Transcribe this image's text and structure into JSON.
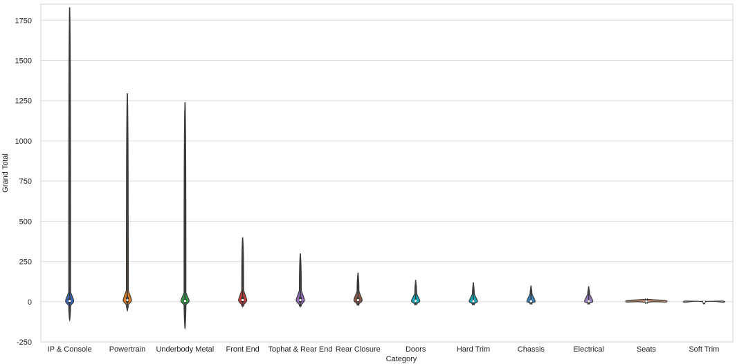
{
  "chart_data": {
    "type": "violin",
    "xlabel": "Category",
    "ylabel": "Grand Total",
    "ylim": [
      -250,
      1850
    ],
    "yticks": [
      -250,
      0,
      250,
      500,
      750,
      1000,
      1250,
      1500,
      1750
    ],
    "grid": true,
    "categories": [
      "IP & Console",
      "Powertrain",
      "Underbody Metal",
      "Front End",
      "Tophat & Rear End",
      "Rear Closure",
      "Doors",
      "Hard Trim",
      "Chassis",
      "Electrical",
      "Seats",
      "Soft Trim"
    ],
    "series": [
      {
        "category": "IP & Console",
        "min": -115,
        "max": 1830,
        "median": 5,
        "q1": -10,
        "q3": 20,
        "color": "#3a66b8"
      },
      {
        "category": "Powertrain",
        "min": -55,
        "max": 1295,
        "median": 10,
        "q1": -5,
        "q3": 30,
        "color": "#e07b24"
      },
      {
        "category": "Underbody Metal",
        "min": -165,
        "max": 1240,
        "median": 5,
        "q1": -5,
        "q3": 15,
        "color": "#2f9a45"
      },
      {
        "category": "Front End",
        "min": -30,
        "max": 400,
        "median": 10,
        "q1": -5,
        "q3": 30,
        "color": "#c73b3b"
      },
      {
        "category": "Tophat & Rear End",
        "min": -30,
        "max": 300,
        "median": 10,
        "q1": -5,
        "q3": 30,
        "color": "#8f6bb8"
      },
      {
        "category": "Rear Closure",
        "min": -20,
        "max": 180,
        "median": 10,
        "q1": 0,
        "q3": 25,
        "color": "#8c5a4d"
      },
      {
        "category": "Doors",
        "min": -15,
        "max": 135,
        "median": 5,
        "q1": 0,
        "q3": 10,
        "color": "#17a9b8"
      },
      {
        "category": "Hard Trim",
        "min": -15,
        "max": 120,
        "median": 3,
        "q1": -5,
        "q3": 8,
        "color": "#17a9b8"
      },
      {
        "category": "Chassis",
        "min": -10,
        "max": 100,
        "median": 3,
        "q1": -3,
        "q3": 8,
        "color": "#3a7fb8"
      },
      {
        "category": "Electrical",
        "min": -10,
        "max": 95,
        "median": 3,
        "q1": -3,
        "q3": 8,
        "color": "#9b7fc4"
      },
      {
        "category": "Seats",
        "min": -5,
        "max": 15,
        "median": 2,
        "q1": 0,
        "q3": 4,
        "color": "#b88a6b"
      },
      {
        "category": "Soft Trim",
        "min": -1,
        "max": 2,
        "median": 0,
        "q1": 0,
        "q3": 1,
        "color": "#d6a6c8"
      }
    ]
  }
}
